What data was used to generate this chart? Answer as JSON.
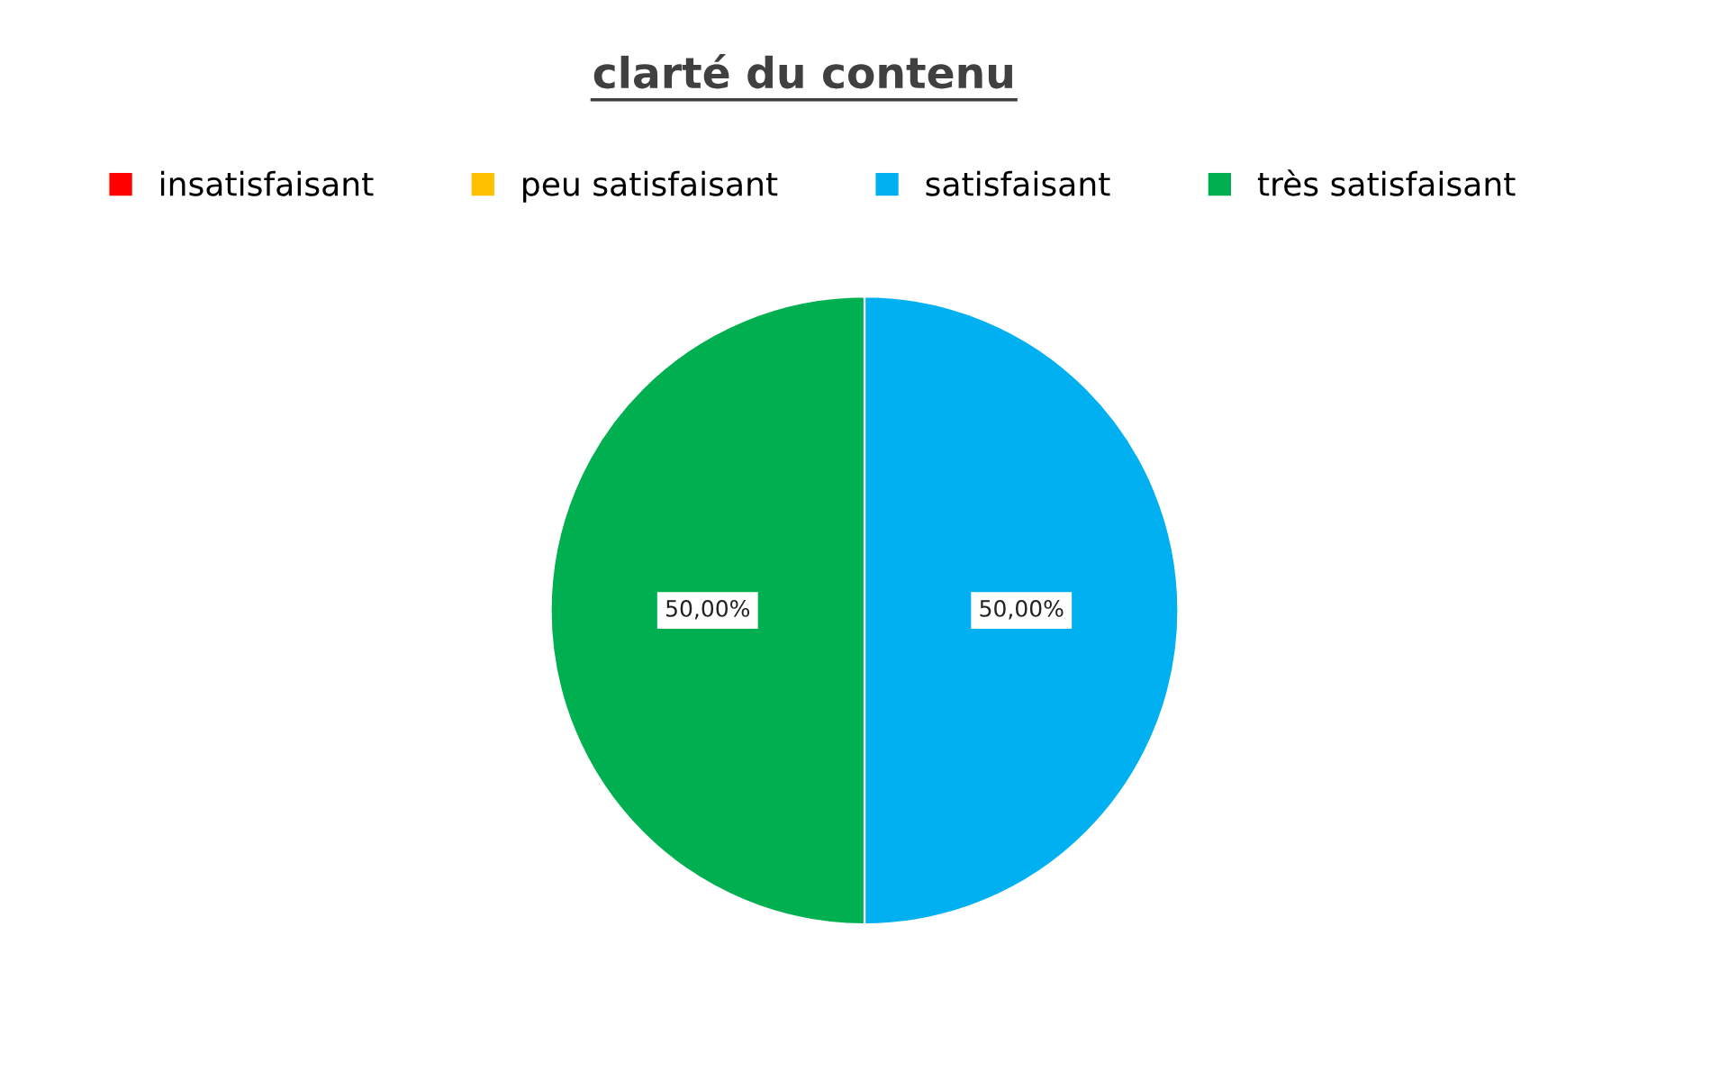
{
  "chart_data": {
    "type": "pie",
    "title": "clarté du contenu",
    "categories": [
      "insatisfaisant",
      "peu satisfaisant",
      "satisfaisant",
      "très satisfaisant"
    ],
    "values": [
      0,
      0,
      50,
      50
    ],
    "colors": [
      "#ff0000",
      "#ffc000",
      "#00b0f0",
      "#00b050"
    ],
    "value_labels": [
      null,
      null,
      "50,00%",
      "50,00%"
    ],
    "legend": "top"
  }
}
